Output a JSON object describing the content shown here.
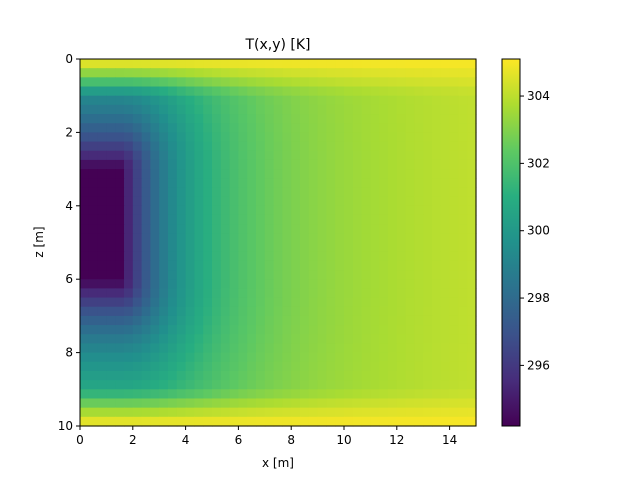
{
  "chart_data": {
    "type": "heatmap",
    "title": "T(x,y) [K]",
    "xlabel": "x [m]",
    "ylabel": "z [m]",
    "xlim": [
      0,
      15
    ],
    "ylim": [
      10,
      0
    ],
    "y_axis_inverted": true,
    "x_ticks": [
      0,
      2,
      4,
      6,
      8,
      10,
      12,
      14
    ],
    "y_ticks": [
      0,
      2,
      4,
      6,
      8,
      10
    ],
    "colormap": "viridis",
    "colorbar": {
      "vmin": 294.2,
      "vmax": 305.1,
      "ticks": [
        296,
        298,
        300,
        302,
        304
      ]
    },
    "field_description_values": {
      "cold_block": {
        "x": [
          0,
          1.5
        ],
        "z": [
          3,
          6
        ],
        "T": 294.2
      },
      "far_field_T": 305.1
    }
  }
}
